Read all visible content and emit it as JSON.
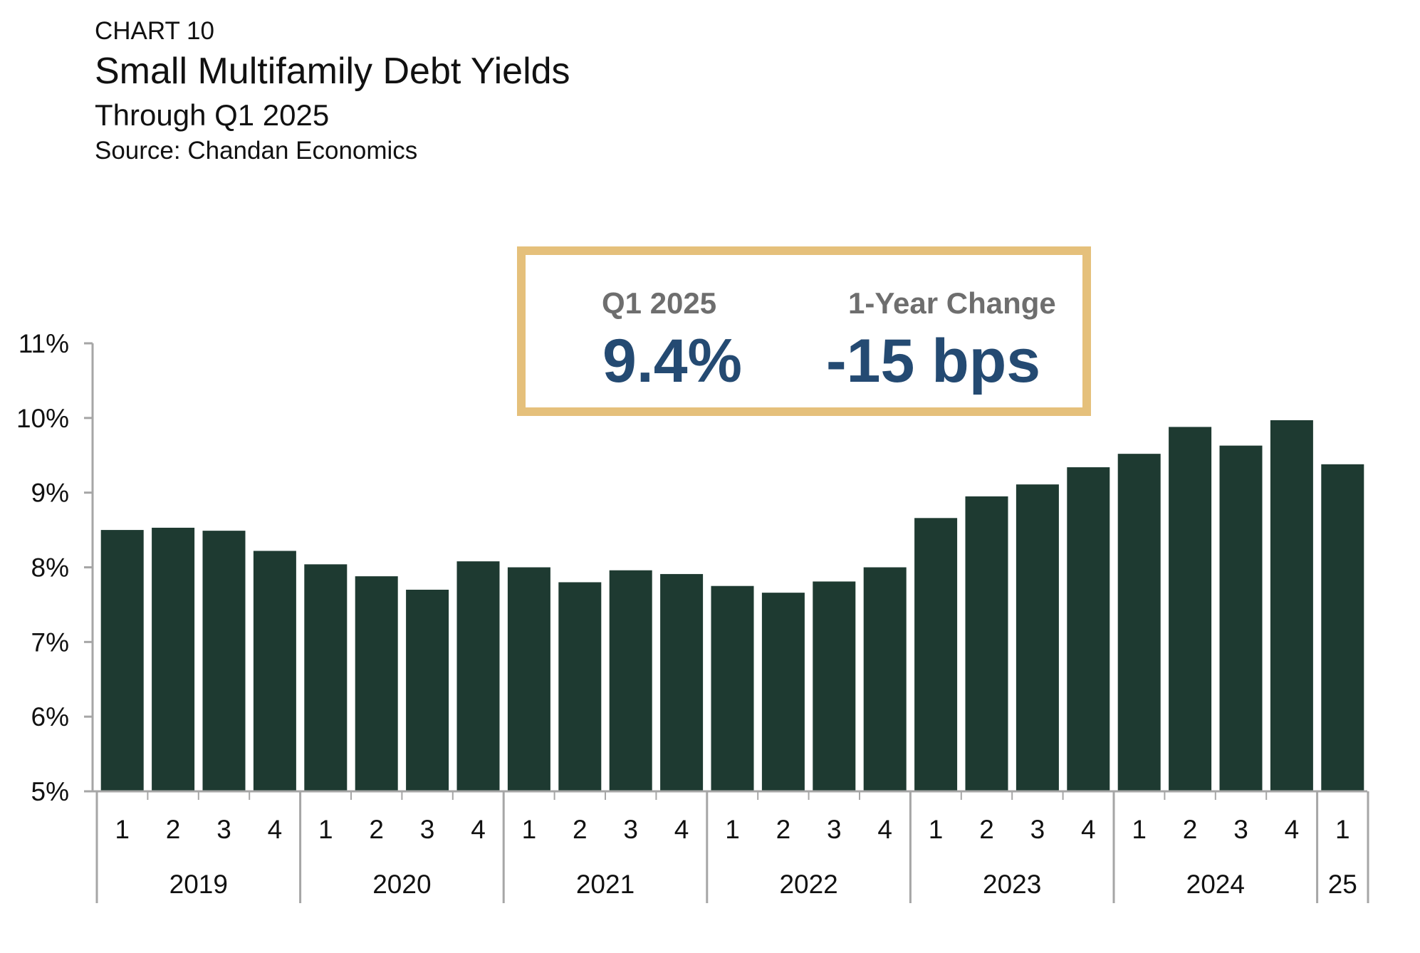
{
  "header": {
    "label": "CHART 10",
    "title": "Small Multifamily Debt Yields",
    "subtitle": "Through Q1 2025",
    "source": "Source: Chandan Economics"
  },
  "callout": {
    "quarter_label": "Q1 2025",
    "quarter_value": "9.4%",
    "change_label": "1-Year Change",
    "change_value": "-15 bps"
  },
  "colors": {
    "bar": "#1e3a31",
    "axis": "#a6a6a6",
    "callout_border": "#e5c07b",
    "callout_value": "#244a72",
    "callout_label": "#6e6e6e"
  },
  "chart_data": {
    "type": "bar",
    "title": "Small Multifamily Debt Yields",
    "subtitle": "Through Q1 2025",
    "ylim": [
      5,
      11
    ],
    "y_ticks": [
      "5%",
      "6%",
      "7%",
      "8%",
      "9%",
      "10%",
      "11%"
    ],
    "grid": false,
    "legend": "none",
    "categories": [
      "1",
      "2",
      "3",
      "4",
      "1",
      "2",
      "3",
      "4",
      "1",
      "2",
      "3",
      "4",
      "1",
      "2",
      "3",
      "4",
      "1",
      "2",
      "3",
      "4",
      "1",
      "2",
      "3",
      "4",
      "1"
    ],
    "groups": [
      {
        "label": "2019",
        "count": 4
      },
      {
        "label": "2020",
        "count": 4
      },
      {
        "label": "2021",
        "count": 4
      },
      {
        "label": "2022",
        "count": 4
      },
      {
        "label": "2023",
        "count": 4
      },
      {
        "label": "2024",
        "count": 4
      },
      {
        "label": "25",
        "count": 1
      }
    ],
    "values": [
      8.5,
      8.53,
      8.49,
      8.22,
      8.04,
      7.88,
      7.7,
      8.08,
      8.0,
      7.8,
      7.96,
      7.91,
      7.75,
      7.66,
      7.81,
      8.0,
      8.66,
      8.95,
      9.11,
      9.34,
      9.52,
      9.88,
      9.63,
      9.97,
      9.38
    ]
  }
}
